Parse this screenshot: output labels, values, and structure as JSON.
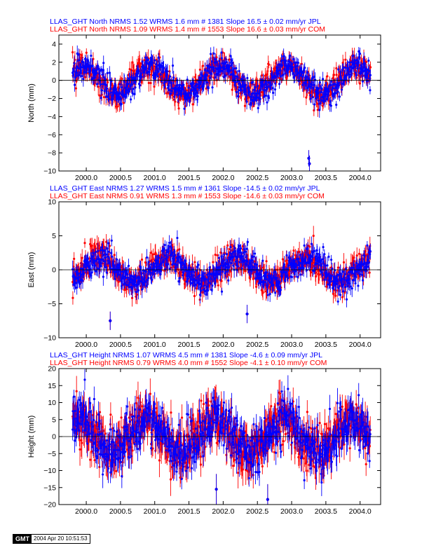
{
  "chart_data": [
    {
      "type": "scatter",
      "header": [
        {
          "text": "LLAS_GHT North NRMS 1.52 WRMS  1.6 mm # 1381 Slope   16.5 ±  0.02 mm/yr JPL",
          "color": "#0000ff"
        },
        {
          "text": "LLAS_GHT North NRMS 1.09 WRMS  1.4 mm # 1553 Slope   16.6 ±  0.03 mm/yr COM",
          "color": "#ff0000"
        }
      ],
      "ylabel": "North (mm)",
      "xlim": [
        1999.6,
        2004.3
      ],
      "ylim": [
        -10,
        5
      ],
      "xticks": [
        2000.0,
        2000.5,
        2001.0,
        2001.5,
        2002.0,
        2002.5,
        2003.0,
        2003.5,
        2004.0
      ],
      "xticklabels": [
        "2000.0",
        "2000.5",
        "2001.0",
        "2001.5",
        "2002.0",
        "2002.5",
        "2003.0",
        "2003.5",
        "2004.0"
      ],
      "yticks": [
        -10,
        -8,
        -6,
        -4,
        -2,
        0,
        2,
        4
      ],
      "yticklabels": [
        "−10",
        "−8",
        "−6",
        "−4",
        "−2",
        "0",
        "2",
        "4"
      ],
      "x_range": [
        1999.8,
        2004.15
      ],
      "seasonal": {
        "amplitude": 1.6,
        "period": 1.0,
        "phase": 1.8,
        "noise": 0.7,
        "err": 0.6
      },
      "outliers": [
        {
          "x": 2003.25,
          "y": -8.6
        },
        {
          "x": 2003.26,
          "y": -9.2
        }
      ],
      "series": [
        {
          "name": "JPL",
          "color": "#0000ff",
          "n_points": 1381
        },
        {
          "name": "COM",
          "color": "#ff0000",
          "n_points": 1553
        }
      ]
    },
    {
      "type": "scatter",
      "header": [
        {
          "text": "LLAS_GHT East NRMS 1.27 WRMS  1.5 mm # 1361 Slope  -14.5 ±  0.02 mm/yr JPL",
          "color": "#0000ff"
        },
        {
          "text": "LLAS_GHT East NRMS 0.91 WRMS  1.3 mm # 1553 Slope  -14.6 ±  0.03 mm/yr COM",
          "color": "#ff0000"
        }
      ],
      "ylabel": "East (mm)",
      "xlim": [
        1999.6,
        2004.3
      ],
      "ylim": [
        -10,
        10
      ],
      "xticks": [
        2000.0,
        2000.5,
        2001.0,
        2001.5,
        2002.0,
        2002.5,
        2003.0,
        2003.5,
        2004.0
      ],
      "xticklabels": [
        "2000.0",
        "2000.5",
        "2001.0",
        "2001.5",
        "2002.0",
        "2002.5",
        "2003.0",
        "2003.5",
        "2004.0"
      ],
      "yticks": [
        -10,
        -5,
        0,
        5,
        10
      ],
      "yticklabels": [
        "−10",
        "−5",
        "0",
        "5",
        "10"
      ],
      "x_range": [
        1999.8,
        2004.15
      ],
      "seasonal": {
        "amplitude": 1.8,
        "period": 1.0,
        "phase": 0.2,
        "noise": 1.0,
        "err": 0.9
      },
      "outliers": [
        {
          "x": 2000.35,
          "y": -7.5
        },
        {
          "x": 2002.35,
          "y": -6.5
        }
      ],
      "series": [
        {
          "name": "JPL",
          "color": "#0000ff",
          "n_points": 1361
        },
        {
          "name": "COM",
          "color": "#ff0000",
          "n_points": 1553
        }
      ]
    },
    {
      "type": "scatter",
      "header": [
        {
          "text": "LLAS_GHT Height NRMS 1.07 WRMS  4.5 mm # 1381 Slope   -4.6 ±  0.09 mm/yr JPL",
          "color": "#0000ff"
        },
        {
          "text": "LLAS_GHT Height NRMS 0.79 WRMS  4.0 mm # 1552 Slope   -4.1 ±  0.10 mm/yr COM",
          "color": "#ff0000"
        }
      ],
      "ylabel": "Height (mm)",
      "xlim": [
        1999.6,
        2004.3
      ],
      "ylim": [
        -20,
        20
      ],
      "xticks": [
        2000.0,
        2000.5,
        2001.0,
        2001.5,
        2002.0,
        2002.5,
        2003.0,
        2003.5,
        2004.0
      ],
      "xticklabels": [
        "2000.0",
        "2000.5",
        "2001.0",
        "2001.5",
        "2002.0",
        "2002.5",
        "2003.0",
        "2003.5",
        "2004.0"
      ],
      "yticks": [
        -20,
        -15,
        -10,
        -5,
        0,
        5,
        10,
        15,
        20
      ],
      "yticklabels": [
        "−20",
        "−15",
        "−10",
        "−5",
        "0",
        "5",
        "10",
        "15",
        "20"
      ],
      "x_range": [
        1999.8,
        2004.15
      ],
      "seasonal": {
        "amplitude": 5.0,
        "period": 1.0,
        "phase": 2.2,
        "noise": 3.5,
        "err": 3.0
      },
      "outliers": [
        {
          "x": 2001.9,
          "y": -15.5
        },
        {
          "x": 2002.65,
          "y": -18.5
        }
      ],
      "series": [
        {
          "name": "JPL",
          "color": "#0000ff",
          "n_points": 1381
        },
        {
          "name": "COM",
          "color": "#ff0000",
          "n_points": 1552
        }
      ]
    }
  ],
  "footer": {
    "logo": "GMT",
    "timestamp": "2004 Apr 20 10:51:53"
  }
}
